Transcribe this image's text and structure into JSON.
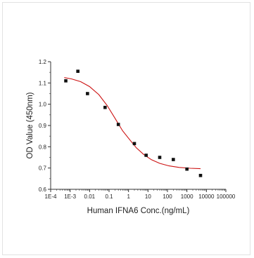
{
  "chart_data": {
    "type": "scatter",
    "title": "",
    "xlabel": "Human IFNA6 Conc.(ng/mL)",
    "ylabel": "OD Value (450nm)",
    "xscale": "log",
    "xlim": [
      0.0001,
      100000
    ],
    "ylim": [
      0.6,
      1.2
    ],
    "x_tick_labels": [
      "1E-4",
      "1E-3",
      "0.01",
      "0.1",
      "1",
      "10",
      "100",
      "1000",
      "10000",
      "100000"
    ],
    "y_tick_labels": [
      "0.6",
      "0.7",
      "0.8",
      "0.9",
      "1.0",
      "1.1",
      "1.2"
    ],
    "grid": false,
    "legend": "none",
    "series": [
      {
        "kind": "points",
        "color": "#111111",
        "marker": "square",
        "x": [
          0.0006,
          0.0025,
          0.0078,
          0.0625,
          0.3,
          2.0,
          8.0,
          40,
          200,
          1000,
          5000
        ],
        "y": [
          1.11,
          1.155,
          1.05,
          0.985,
          0.905,
          0.815,
          0.76,
          0.75,
          0.74,
          0.695,
          0.665
        ]
      },
      {
        "kind": "fit",
        "color": "#cc1111",
        "model": "4PL",
        "x": [
          0.0005,
          0.0012,
          0.0035,
          0.01,
          0.03,
          0.08,
          0.2,
          0.5,
          1.0,
          2.5,
          6.0,
          15,
          40,
          120,
          400,
          1500,
          5000
        ],
        "y": [
          1.125,
          1.119,
          1.106,
          1.083,
          1.045,
          0.994,
          0.935,
          0.875,
          0.84,
          0.795,
          0.764,
          0.739,
          0.722,
          0.71,
          0.703,
          0.699,
          0.697
        ]
      }
    ]
  }
}
